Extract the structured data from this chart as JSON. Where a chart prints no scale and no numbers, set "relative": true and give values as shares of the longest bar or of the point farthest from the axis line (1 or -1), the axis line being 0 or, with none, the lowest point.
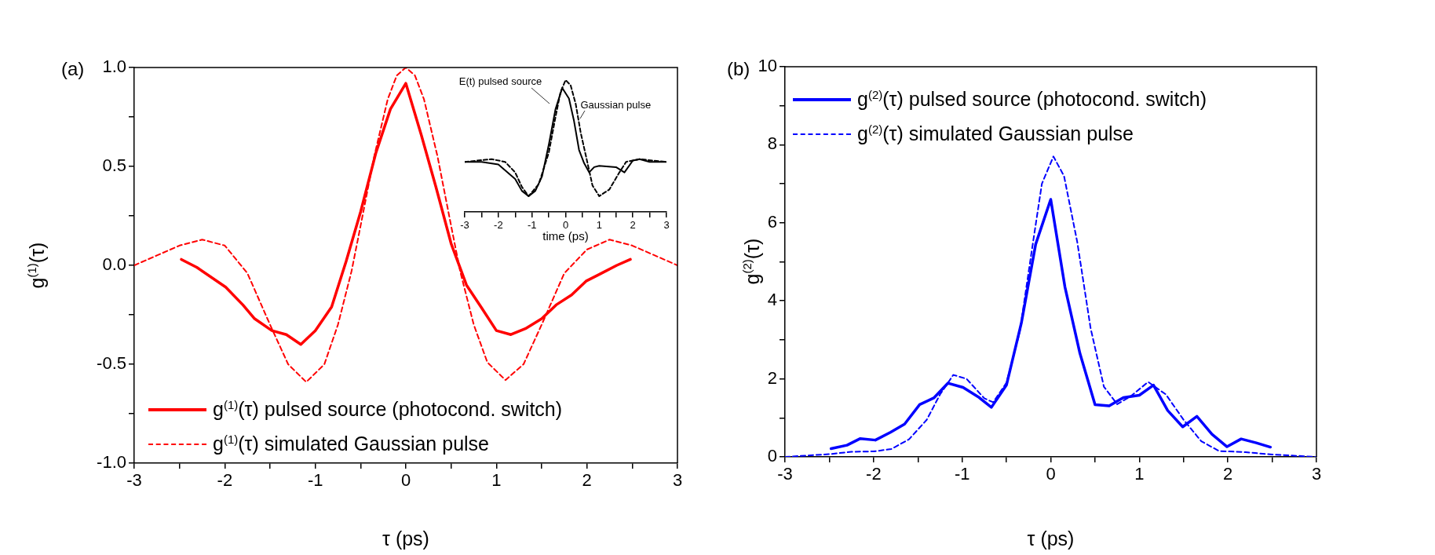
{
  "chart_data": [
    {
      "type": "line",
      "title": "(a)",
      "xlabel": "τ (ps)",
      "ylabel": "g$^{(1)}$(τ)",
      "xlim": [
        -3,
        3
      ],
      "ylim": [
        -1,
        1
      ],
      "xticks": [
        -3,
        {
          "value": -2.5,
          "label": null
        },
        -2,
        {
          "value": -1.5,
          "label": null
        },
        -1,
        {
          "value": -0.5,
          "label": null
        },
        0,
        {
          "value": 0.5,
          "label": null
        },
        1,
        {
          "value": 1.5,
          "label": null
        },
        2,
        {
          "value": 2.5,
          "label": null
        },
        3
      ],
      "yticks": [
        {
          "value": -1,
          "label": "-1.0"
        },
        {
          "value": -0.75,
          "label": null
        },
        {
          "value": -0.5,
          "label": "-0.5"
        },
        {
          "value": -0.25,
          "label": null
        },
        {
          "value": 0,
          "label": "0.0"
        },
        {
          "value": 0.25,
          "label": null
        },
        {
          "value": 0.5,
          "label": "0.5"
        },
        {
          "value": 0.75,
          "label": null
        },
        {
          "value": 1,
          "label": "1.0"
        }
      ],
      "grid": false,
      "legend": "bottom left",
      "marker": "none",
      "series": [
        {
          "name": "g$^{(1)}$(τ) pulsed source (photocond. switch)",
          "color": "#ff0000",
          "line_style": "solid",
          "x": [
            -2.48,
            -2.31,
            -1.99,
            -1.8,
            -1.67,
            -1.48,
            -1.32,
            -1.16,
            -1,
            -0.82,
            -0.66,
            -0.5,
            -0.33,
            -0.17,
            0,
            0.17,
            0.33,
            0.5,
            0.67,
            0.83,
            1,
            1.16,
            1.32,
            1.5,
            1.66,
            1.83,
            1.99,
            2.16,
            2.33,
            2.48
          ],
          "values": [
            0.03,
            -0.01,
            -0.11,
            -0.2,
            -0.27,
            -0.33,
            -0.35,
            -0.4,
            -0.33,
            -0.21,
            0.02,
            0.27,
            0.57,
            0.79,
            0.92,
            0.66,
            0.4,
            0.11,
            -0.1,
            -0.21,
            -0.33,
            -0.35,
            -0.32,
            -0.27,
            -0.2,
            -0.15,
            -0.08,
            -0.04,
            0,
            0.03
          ]
        },
        {
          "name": "g$^{(1)}$(τ) simulated Gaussian pulse",
          "color": "#ff0000",
          "line_style": "dashed",
          "x": [
            -3,
            -2.75,
            -2.5,
            -2.25,
            -2,
            -1.75,
            -1.5,
            -1.3,
            -1.1,
            -0.9,
            -0.75,
            -0.6,
            -0.5,
            -0.35,
            -0.2,
            -0.1,
            0,
            0.1,
            0.2,
            0.35,
            0.5,
            0.6,
            0.75,
            0.9,
            1.1,
            1.3,
            1.5,
            1.75,
            2,
            2.25,
            2.5,
            2.75,
            3
          ],
          "values": [
            0,
            0.05,
            0.1,
            0.13,
            0.1,
            -0.04,
            -0.3,
            -0.5,
            -0.59,
            -0.5,
            -0.3,
            -0.03,
            0.2,
            0.55,
            0.84,
            0.96,
            1,
            0.96,
            0.84,
            0.55,
            0.2,
            -0.03,
            -0.3,
            -0.49,
            -0.58,
            -0.5,
            -0.3,
            -0.04,
            0.08,
            0.13,
            0.1,
            0.05,
            0
          ]
        }
      ]
    },
    {
      "type": "line",
      "xlabel": "time (ps)",
      "xlim": [
        -3,
        3
      ],
      "xticks": [
        -3,
        {
          "value": -2.5,
          "label": null
        },
        -2,
        {
          "value": -1.5,
          "label": null
        },
        -1,
        {
          "value": -0.5,
          "label": null
        },
        0,
        {
          "value": 0.5,
          "label": null
        },
        1,
        {
          "value": 1.5,
          "label": null
        },
        2,
        {
          "value": 2.5,
          "label": null
        },
        3
      ],
      "relative": true,
      "grid": false,
      "legend": false,
      "marker": "none",
      "series": [
        {
          "name": "E(t) pulsed source",
          "color": "#000000",
          "line_style": "solid",
          "x": [
            -3,
            -2.5,
            -2,
            -1.5,
            -1.3,
            -1.1,
            -0.9,
            -0.7,
            -0.5,
            -0.3,
            -0.1,
            0.1,
            0.25,
            0.4,
            0.55,
            0.7,
            0.85,
            1,
            1.5,
            1.75,
            2,
            2.2,
            2.5,
            3
          ],
          "values": [
            0.38,
            0.38,
            0.36,
            0.25,
            0.16,
            0.12,
            0.16,
            0.27,
            0.51,
            0.78,
            0.94,
            0.86,
            0.69,
            0.47,
            0.37,
            0.3,
            0.34,
            0.35,
            0.34,
            0.3,
            0.39,
            0.4,
            0.38,
            0.38
          ]
        },
        {
          "name": "Gaussian pulse",
          "color": "#000000",
          "line_style": "dashed",
          "x": [
            -3,
            -2.2,
            -1.8,
            -1.5,
            -1.3,
            -1.1,
            -0.8,
            -0.5,
            -0.3,
            -0.15,
            0,
            0.15,
            0.3,
            0.45,
            0.6,
            0.8,
            1,
            1.3,
            1.6,
            1.8,
            2.2,
            3
          ],
          "values": [
            0.38,
            0.4,
            0.38,
            0.3,
            0.19,
            0.12,
            0.21,
            0.45,
            0.72,
            0.91,
            1,
            0.96,
            0.82,
            0.6,
            0.43,
            0.2,
            0.12,
            0.17,
            0.3,
            0.38,
            0.4,
            0.38
          ]
        }
      ]
    },
    {
      "type": "line",
      "title": "(b)",
      "xlabel": "τ (ps)",
      "ylabel": "g$^{(2)}$(τ)",
      "xlim": [
        -3,
        3
      ],
      "ylim": [
        0,
        10
      ],
      "xticks": [
        -3,
        {
          "value": -2.5,
          "label": null
        },
        -2,
        {
          "value": -1.5,
          "label": null
        },
        -1,
        {
          "value": -0.5,
          "label": null
        },
        0,
        {
          "value": 0.5,
          "label": null
        },
        1,
        {
          "value": 1.5,
          "label": null
        },
        2,
        {
          "value": 2.5,
          "label": null
        },
        3
      ],
      "yticks": [
        0,
        {
          "value": 1,
          "label": null
        },
        2,
        {
          "value": 3,
          "label": null
        },
        4,
        {
          "value": 5,
          "label": null
        },
        6,
        {
          "value": 7,
          "label": null
        },
        8,
        {
          "value": 9,
          "label": null
        },
        10
      ],
      "grid": false,
      "legend": "top left",
      "marker": "none",
      "series": [
        {
          "name": "g$^{(2)}$(τ) pulsed source (photocond. switch)",
          "color": "#0000ff",
          "line_style": "solid",
          "x": [
            -2.48,
            -2.3,
            -2.15,
            -1.98,
            -1.81,
            -1.65,
            -1.48,
            -1.32,
            -1.16,
            -0.99,
            -0.82,
            -0.67,
            -0.5,
            -0.33,
            -0.17,
            0,
            0.16,
            0.33,
            0.5,
            0.66,
            0.82,
            1,
            1.16,
            1.32,
            1.49,
            1.65,
            1.82,
            1.99,
            2.15,
            2.32,
            2.48
          ],
          "values": [
            0.21,
            0.3,
            0.47,
            0.43,
            0.63,
            0.84,
            1.34,
            1.51,
            1.89,
            1.78,
            1.54,
            1.27,
            1.84,
            3.45,
            5.45,
            6.6,
            4.36,
            2.65,
            1.34,
            1.31,
            1.52,
            1.58,
            1.84,
            1.19,
            0.77,
            1.04,
            0.58,
            0.26,
            0.46,
            0.36,
            0.25
          ]
        },
        {
          "name": "g$^{(2)}$(τ) simulated Gaussian pulse",
          "color": "#0000ff",
          "line_style": "dashed",
          "x": [
            -3,
            -2.5,
            -2.25,
            -2,
            -1.8,
            -1.6,
            -1.4,
            -1.25,
            -1.1,
            -0.95,
            -0.75,
            -0.65,
            -0.5,
            -0.35,
            -0.2,
            -0.1,
            0.03,
            0.15,
            0.3,
            0.45,
            0.6,
            0.75,
            0.9,
            1.1,
            1.3,
            1.5,
            1.7,
            1.9,
            2.2,
            2.5,
            3
          ],
          "values": [
            0,
            0.07,
            0.13,
            0.14,
            0.2,
            0.45,
            0.95,
            1.6,
            2.1,
            2,
            1.5,
            1.4,
            1.9,
            3.2,
            5.5,
            7,
            7.7,
            7.2,
            5.5,
            3.3,
            1.8,
            1.35,
            1.55,
            1.92,
            1.6,
            0.95,
            0.4,
            0.15,
            0.12,
            0.06,
            0
          ]
        }
      ]
    }
  ]
}
